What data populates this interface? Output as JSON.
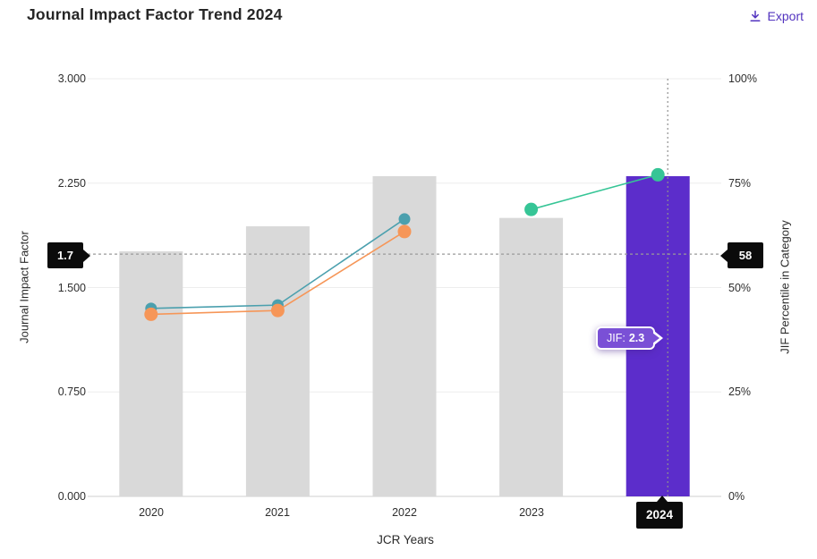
{
  "header": {
    "title": "Journal Impact Factor Trend 2024",
    "export_label": "Export"
  },
  "chart_data": {
    "type": "bar+line",
    "xlabel": "JCR Years",
    "ylabel_left": "Journal Impact Factor",
    "ylabel_right": "JIF Percentile in Category",
    "categories": [
      "2020",
      "2021",
      "2022",
      "2023",
      "2024"
    ],
    "left_ticks": [
      "3.000",
      "2.250",
      "1.500",
      "0.750",
      "0.000"
    ],
    "right_ticks": [
      "100%",
      "75%",
      "50%",
      "25%",
      "0%"
    ],
    "left_axis_range": [
      0,
      3
    ],
    "right_axis_range": [
      0,
      100
    ],
    "bars": {
      "name": "Journal Impact Factor",
      "values": [
        1.76,
        1.94,
        2.3,
        2.0,
        2.3
      ],
      "highlight_index": 4
    },
    "series": [
      {
        "name": "percentile-line-teal",
        "axis": "right",
        "color": "#4ba0ae",
        "dot_radius": 6.5,
        "x": [
          "2020",
          "2021",
          "2022"
        ],
        "values": [
          45,
          45.8,
          66.4
        ]
      },
      {
        "name": "percentile-line-orange",
        "axis": "right",
        "color": "#f69658",
        "dot_radius": 7.5,
        "x": [
          "2020",
          "2021",
          "2022"
        ],
        "values": [
          43.6,
          44.5,
          63.4
        ]
      },
      {
        "name": "percentile-line-green",
        "axis": "right",
        "color": "#36c596",
        "dot_radius": 7.5,
        "x": [
          "2023",
          "2024"
        ],
        "values": [
          68.7,
          77
        ]
      }
    ],
    "crosshair": {
      "x_category": "2024",
      "left_value_label": "1.7",
      "right_value_label": "58",
      "right_value": 58
    },
    "tooltip": {
      "label": "JIF:",
      "value": "2.3"
    },
    "colors": {
      "bar": "#d9d9d9",
      "bar_highlight": "#5c2dcb",
      "accent": "#5233bf",
      "gridline": "#ededed",
      "axis_line": "#cfcfcf",
      "crosshair": "#9a9a9a"
    }
  }
}
